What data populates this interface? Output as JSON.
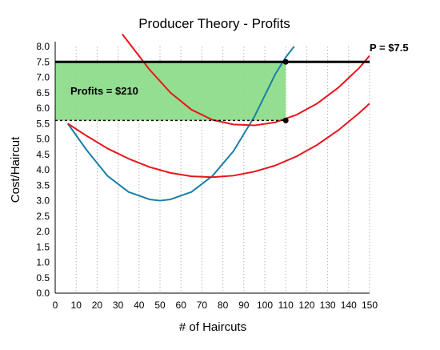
{
  "chart_data": {
    "type": "line",
    "title": "Producer Theory - Profits",
    "xlabel": "# of Haircuts",
    "ylabel": "Cost/Haircut",
    "xlim": [
      0,
      150
    ],
    "ylim": [
      0,
      8
    ],
    "x_ticks": [
      "0",
      "10",
      "20",
      "30",
      "40",
      "50",
      "60",
      "70",
      "80",
      "90",
      "100",
      "110",
      "120",
      "130",
      "140",
      "150"
    ],
    "y_ticks": [
      "0.0",
      "0.5",
      "1.0",
      "1.5",
      "2.0",
      "2.5",
      "3.0",
      "3.5",
      "4.0",
      "4.5",
      "5.0",
      "5.5",
      "6.0",
      "6.5",
      "7.0",
      "7.5",
      "8.0"
    ],
    "grid": "vertical dotted",
    "price": {
      "label": "P = $7.5",
      "value": 7.5
    },
    "profit_area": {
      "label": "Profits = $210",
      "x": [
        0,
        110
      ],
      "y": [
        5.6,
        7.5
      ],
      "color": "#8ddc8a"
    },
    "cost_line": {
      "value": 5.6,
      "x": [
        0,
        110
      ],
      "style": "dashed"
    },
    "points": [
      {
        "x": 110,
        "y": 7.5
      },
      {
        "x": 110,
        "y": 5.6
      }
    ],
    "series": [
      {
        "color": "#1a7fa6",
        "x": [
          6,
          15,
          25,
          35,
          45,
          50,
          55,
          65,
          75,
          85,
          95,
          105,
          110,
          114
        ],
        "y": [
          5.5,
          4.64,
          3.8,
          3.28,
          3.04,
          3.0,
          3.04,
          3.28,
          3.8,
          4.6,
          5.72,
          7.1,
          7.65,
          8.0
        ]
      },
      {
        "color": "#e8141a",
        "x": [
          32,
          45,
          55,
          65,
          75,
          85,
          95,
          105,
          115,
          125,
          135,
          145,
          150
        ],
        "y": [
          8.4,
          7.25,
          6.5,
          5.95,
          5.62,
          5.47,
          5.44,
          5.54,
          5.78,
          6.15,
          6.66,
          7.3,
          7.7
        ]
      },
      {
        "color": "#e8141a",
        "x": [
          6,
          15,
          25,
          35,
          45,
          55,
          65,
          75,
          85,
          95,
          105,
          115,
          125,
          135,
          145,
          150
        ],
        "y": [
          5.5,
          5.1,
          4.69,
          4.36,
          4.09,
          3.9,
          3.79,
          3.76,
          3.81,
          3.94,
          4.14,
          4.43,
          4.81,
          5.28,
          5.84,
          6.15
        ]
      }
    ]
  }
}
